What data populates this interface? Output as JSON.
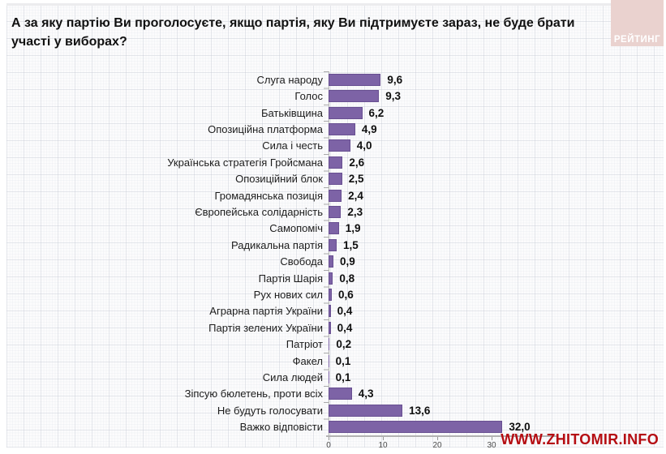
{
  "title": "А за яку партію Ви проголосуєте, якщо партія, яку Ви підтримуєте зараз, не буде брати участі у виборах?",
  "logo": {
    "label": "РЕЙТИНГ",
    "bg_color": "#ead2cf",
    "text_color": "#ffffff"
  },
  "watermark": {
    "text": "WWW.ZHITOMIR.INFO",
    "color": "#b50d12"
  },
  "chart_data": {
    "type": "bar",
    "orientation": "horizontal",
    "title": "А за яку партію Ви проголосуєте, якщо партія, яку Ви підтримуєте зараз, не буде брати участі у виборах?",
    "categories": [
      "Слуга народу",
      "Голос",
      "Батьківщина",
      "Опозиційна платформа",
      "Сила і честь",
      "Українська стратегія Гройсмана",
      "Опозиційний блок",
      "Громадянська позиція",
      "Європейська солідарність",
      "Самопоміч",
      "Радикальна партія",
      "Свобода",
      "Партія Шарія",
      "Рух нових сил",
      "Аграрна партія України",
      "Партія зелених України",
      "Патріот",
      "Факел",
      "Сила людей",
      "Зіпсую бюлетень, проти всіх",
      "Не будуть голосувати",
      "Важко відповісти"
    ],
    "values": [
      9.6,
      9.3,
      6.2,
      4.9,
      4.0,
      2.6,
      2.5,
      2.4,
      2.3,
      1.9,
      1.5,
      0.9,
      0.8,
      0.6,
      0.4,
      0.4,
      0.2,
      0.1,
      0.1,
      4.3,
      13.6,
      32.0
    ],
    "value_labels": [
      "9,6",
      "9,3",
      "6,2",
      "4,9",
      "4,0",
      "2,6",
      "2,5",
      "2,4",
      "2,3",
      "1,9",
      "1,5",
      "0,9",
      "0,8",
      "0,6",
      "0,4",
      "0,4",
      "0,2",
      "0,1",
      "0,1",
      "4,3",
      "13,6",
      "32,0"
    ],
    "x_ticks": [
      "0",
      "10",
      "20",
      "30"
    ],
    "x_tick_values": [
      0,
      10,
      20,
      30
    ],
    "xlim": [
      0,
      35
    ],
    "bar_color": "#7d63a6",
    "grid": "graph-paper background",
    "legend": "none",
    "xlabel": "",
    "ylabel": ""
  }
}
